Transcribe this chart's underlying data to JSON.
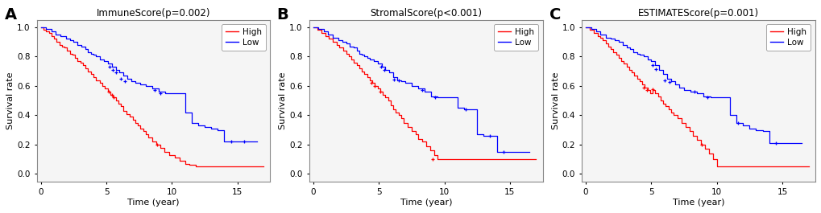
{
  "panels": [
    {
      "label": "A",
      "title": "ImmuneScore(p=0.002)",
      "xlabel": "Time (year)",
      "ylabel": "Survival rate",
      "xlim": [
        -0.3,
        17.5
      ],
      "ylim": [
        -0.05,
        1.05
      ],
      "xticks": [
        0,
        5,
        10,
        15
      ],
      "yticks": [
        0.0,
        0.2,
        0.4,
        0.6,
        0.8,
        1.0
      ],
      "high_color": "#FF0000",
      "low_color": "#0000FF",
      "high_t": [
        0,
        0.2,
        0.4,
        0.6,
        0.8,
        1.0,
        1.2,
        1.4,
        1.6,
        1.8,
        2.0,
        2.2,
        2.4,
        2.6,
        2.8,
        3.0,
        3.2,
        3.4,
        3.6,
        3.8,
        4.0,
        4.2,
        4.5,
        4.7,
        4.9,
        5.1,
        5.3,
        5.5,
        5.7,
        5.9,
        6.1,
        6.3,
        6.5,
        6.8,
        7.0,
        7.2,
        7.4,
        7.6,
        7.8,
        8.0,
        8.2,
        8.5,
        8.8,
        9.1,
        9.4,
        9.8,
        10.2,
        10.6,
        11.0,
        11.3,
        11.8,
        12.5,
        17.0
      ],
      "high_s": [
        1.0,
        0.98,
        0.97,
        0.96,
        0.94,
        0.92,
        0.9,
        0.88,
        0.87,
        0.86,
        0.84,
        0.82,
        0.81,
        0.79,
        0.77,
        0.76,
        0.74,
        0.72,
        0.7,
        0.68,
        0.66,
        0.64,
        0.62,
        0.6,
        0.58,
        0.56,
        0.54,
        0.52,
        0.5,
        0.48,
        0.46,
        0.43,
        0.41,
        0.39,
        0.37,
        0.35,
        0.33,
        0.31,
        0.29,
        0.27,
        0.25,
        0.22,
        0.2,
        0.18,
        0.15,
        0.13,
        0.11,
        0.09,
        0.07,
        0.06,
        0.05,
        0.05,
        0.05
      ],
      "low_t": [
        0,
        0.4,
        0.8,
        1.1,
        1.5,
        1.9,
        2.2,
        2.5,
        2.8,
        3.1,
        3.4,
        3.6,
        3.8,
        4.0,
        4.2,
        4.5,
        4.8,
        5.1,
        5.4,
        5.7,
        6.0,
        6.3,
        6.6,
        6.9,
        7.2,
        7.6,
        8.0,
        8.5,
        9.0,
        9.5,
        10.0,
        10.5,
        11.0,
        11.5,
        12.0,
        12.5,
        13.0,
        13.5,
        14.0,
        15.0,
        16.5
      ],
      "low_s": [
        1.0,
        0.99,
        0.97,
        0.95,
        0.94,
        0.92,
        0.91,
        0.9,
        0.88,
        0.87,
        0.85,
        0.83,
        0.82,
        0.81,
        0.8,
        0.78,
        0.77,
        0.75,
        0.73,
        0.71,
        0.69,
        0.67,
        0.65,
        0.63,
        0.62,
        0.61,
        0.6,
        0.58,
        0.56,
        0.55,
        0.55,
        0.55,
        0.42,
        0.35,
        0.33,
        0.32,
        0.31,
        0.3,
        0.22,
        0.22,
        0.22
      ],
      "high_censors": [
        [
          5.15,
          0.56
        ],
        [
          5.4,
          0.54
        ],
        [
          5.55,
          0.52
        ],
        [
          8.85,
          0.2
        ]
      ],
      "low_censors": [
        [
          5.25,
          0.73
        ],
        [
          5.5,
          0.71
        ],
        [
          5.75,
          0.69
        ],
        [
          6.1,
          0.65
        ],
        [
          6.4,
          0.63
        ],
        [
          8.7,
          0.57
        ],
        [
          9.1,
          0.55
        ],
        [
          14.5,
          0.22
        ],
        [
          15.5,
          0.22
        ]
      ]
    },
    {
      "label": "B",
      "title": "StromalScore(p<0.001)",
      "xlabel": "Time (year)",
      "ylabel": "Survival rate",
      "xlim": [
        -0.3,
        17.5
      ],
      "ylim": [
        -0.05,
        1.05
      ],
      "xticks": [
        0,
        5,
        10,
        15
      ],
      "yticks": [
        0.0,
        0.2,
        0.4,
        0.6,
        0.8,
        1.0
      ],
      "high_color": "#FF0000",
      "low_color": "#0000FF",
      "high_t": [
        0,
        0.3,
        0.6,
        0.9,
        1.2,
        1.5,
        1.8,
        2.0,
        2.3,
        2.5,
        2.7,
        2.9,
        3.1,
        3.3,
        3.5,
        3.7,
        3.9,
        4.1,
        4.3,
        4.5,
        4.7,
        4.9,
        5.1,
        5.3,
        5.5,
        5.7,
        5.9,
        6.1,
        6.3,
        6.5,
        6.7,
        6.9,
        7.2,
        7.5,
        7.8,
        8.0,
        8.3,
        8.6,
        8.9,
        9.2,
        9.5,
        10.0,
        11.0,
        12.0,
        17.0
      ],
      "high_s": [
        1.0,
        0.98,
        0.96,
        0.94,
        0.92,
        0.9,
        0.88,
        0.86,
        0.84,
        0.82,
        0.8,
        0.78,
        0.76,
        0.74,
        0.72,
        0.7,
        0.68,
        0.66,
        0.64,
        0.62,
        0.6,
        0.58,
        0.56,
        0.54,
        0.52,
        0.5,
        0.47,
        0.44,
        0.42,
        0.4,
        0.38,
        0.35,
        0.32,
        0.29,
        0.27,
        0.24,
        0.22,
        0.19,
        0.16,
        0.13,
        0.1,
        0.1,
        0.1,
        0.1,
        0.1
      ],
      "low_t": [
        0,
        0.4,
        0.8,
        1.1,
        1.5,
        1.9,
        2.2,
        2.5,
        2.8,
        3.1,
        3.3,
        3.5,
        3.7,
        3.9,
        4.1,
        4.3,
        4.6,
        4.9,
        5.2,
        5.5,
        5.8,
        6.1,
        6.4,
        6.7,
        7.0,
        7.5,
        8.0,
        8.5,
        9.0,
        9.5,
        10.0,
        10.5,
        11.0,
        11.5,
        12.0,
        12.5,
        13.0,
        13.5,
        14.0,
        15.0,
        16.5
      ],
      "low_s": [
        1.0,
        0.99,
        0.97,
        0.95,
        0.93,
        0.91,
        0.9,
        0.89,
        0.87,
        0.86,
        0.84,
        0.82,
        0.81,
        0.8,
        0.79,
        0.78,
        0.77,
        0.75,
        0.73,
        0.71,
        0.69,
        0.66,
        0.64,
        0.63,
        0.62,
        0.6,
        0.58,
        0.56,
        0.53,
        0.52,
        0.52,
        0.52,
        0.45,
        0.44,
        0.44,
        0.27,
        0.26,
        0.26,
        0.15,
        0.15,
        0.15
      ],
      "high_censors": [
        [
          4.4,
          0.62
        ],
        [
          4.65,
          0.6
        ],
        [
          5.1,
          0.56
        ],
        [
          9.1,
          0.1
        ]
      ],
      "low_censors": [
        [
          5.15,
          0.73
        ],
        [
          5.4,
          0.71
        ],
        [
          6.15,
          0.645
        ],
        [
          6.5,
          0.635
        ],
        [
          8.3,
          0.57
        ],
        [
          9.3,
          0.52
        ],
        [
          11.6,
          0.44
        ],
        [
          13.5,
          0.26
        ],
        [
          14.5,
          0.15
        ]
      ]
    },
    {
      "label": "C",
      "title": "ESTIMATEScore(p=0.001)",
      "xlabel": "Time (year)",
      "ylabel": "Survival rate",
      "xlim": [
        -0.3,
        17.5
      ],
      "ylim": [
        -0.05,
        1.05
      ],
      "xticks": [
        0,
        5,
        10,
        15
      ],
      "yticks": [
        0.0,
        0.2,
        0.4,
        0.6,
        0.8,
        1.0
      ],
      "high_color": "#FF0000",
      "low_color": "#0000FF",
      "high_t": [
        0,
        0.3,
        0.6,
        0.9,
        1.1,
        1.3,
        1.5,
        1.7,
        1.9,
        2.1,
        2.3,
        2.5,
        2.7,
        2.9,
        3.1,
        3.3,
        3.5,
        3.7,
        3.9,
        4.1,
        4.3,
        4.5,
        4.7,
        4.9,
        5.1,
        5.3,
        5.5,
        5.7,
        5.9,
        6.1,
        6.3,
        6.5,
        6.7,
        7.0,
        7.3,
        7.6,
        7.9,
        8.2,
        8.5,
        8.8,
        9.1,
        9.4,
        9.7,
        10.0,
        10.5,
        17.0
      ],
      "high_s": [
        1.0,
        0.98,
        0.96,
        0.94,
        0.93,
        0.91,
        0.89,
        0.87,
        0.85,
        0.83,
        0.81,
        0.79,
        0.77,
        0.75,
        0.73,
        0.71,
        0.69,
        0.67,
        0.65,
        0.63,
        0.61,
        0.59,
        0.57,
        0.55,
        0.57,
        0.55,
        0.53,
        0.5,
        0.48,
        0.46,
        0.44,
        0.42,
        0.4,
        0.38,
        0.35,
        0.32,
        0.29,
        0.26,
        0.23,
        0.2,
        0.17,
        0.14,
        0.1,
        0.05,
        0.05,
        0.05
      ],
      "low_t": [
        0,
        0.4,
        0.8,
        1.1,
        1.5,
        1.9,
        2.2,
        2.5,
        2.8,
        3.1,
        3.4,
        3.6,
        3.9,
        4.1,
        4.4,
        4.7,
        5.0,
        5.3,
        5.6,
        5.9,
        6.2,
        6.5,
        6.8,
        7.1,
        7.5,
        8.0,
        8.5,
        9.0,
        9.5,
        10.0,
        10.5,
        11.0,
        11.5,
        12.0,
        12.5,
        13.0,
        13.5,
        14.0,
        15.0,
        16.5
      ],
      "low_s": [
        1.0,
        0.99,
        0.97,
        0.95,
        0.93,
        0.92,
        0.91,
        0.9,
        0.88,
        0.86,
        0.85,
        0.83,
        0.82,
        0.81,
        0.8,
        0.78,
        0.77,
        0.74,
        0.71,
        0.68,
        0.65,
        0.63,
        0.61,
        0.59,
        0.57,
        0.56,
        0.55,
        0.53,
        0.52,
        0.52,
        0.52,
        0.4,
        0.35,
        0.33,
        0.31,
        0.3,
        0.29,
        0.21,
        0.21,
        0.21
      ],
      "high_censors": [
        [
          4.4,
          0.59
        ],
        [
          4.65,
          0.57
        ],
        [
          5.1,
          0.575
        ],
        [
          8.85,
          0.2
        ]
      ],
      "low_censors": [
        [
          5.1,
          0.74
        ],
        [
          5.35,
          0.715
        ],
        [
          6.0,
          0.64
        ],
        [
          6.4,
          0.625
        ],
        [
          8.3,
          0.56
        ],
        [
          9.3,
          0.52
        ],
        [
          11.6,
          0.35
        ],
        [
          14.5,
          0.21
        ]
      ]
    }
  ],
  "bg_color": "#FFFFFF",
  "panel_bg": "#F5F5F5",
  "axes_color": "#888888",
  "label_fontsize": 8,
  "title_fontsize": 8.5,
  "tick_fontsize": 7.5,
  "legend_fontsize": 7.5,
  "panel_label_fontsize": 14
}
